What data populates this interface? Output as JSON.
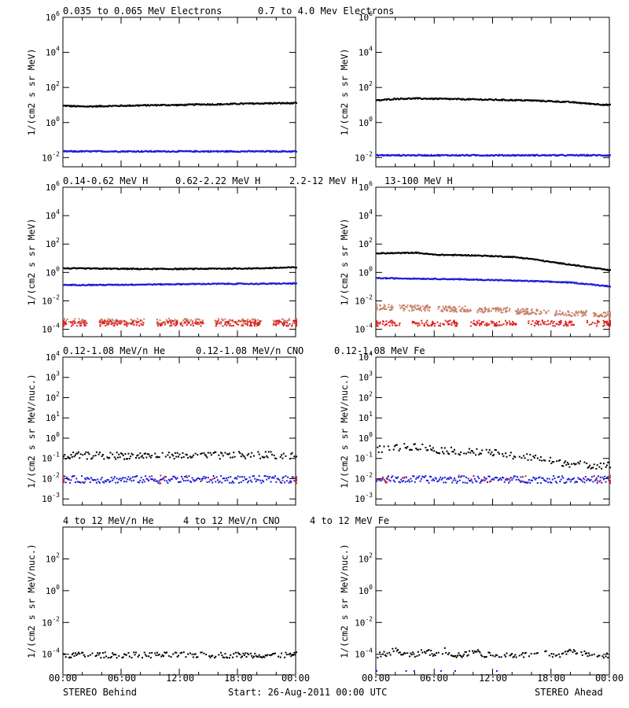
{
  "title_rows": [
    {
      "labels": [
        {
          "text": "0.035 to 0.065 MeV Electrons",
          "color": "#000000"
        },
        {
          "text": "0.7 to 4.0 Mev Electrons",
          "color": "#1a1ad6"
        }
      ]
    },
    {
      "labels": [
        {
          "text": "0.14-0.62 MeV H",
          "color": "#000000"
        },
        {
          "text": "0.62-2.22 MeV H",
          "color": "#1a1ad6"
        },
        {
          "text": "2.2-12 MeV H",
          "color": "#c8826a"
        },
        {
          "text": "13-100 MeV H",
          "color": "#e02020"
        }
      ]
    },
    {
      "labels": [
        {
          "text": "0.12-1.08 MeV/n He",
          "color": "#000000"
        },
        {
          "text": "0.12-1.08 MeV/n CNO",
          "color": "#1a1ad6"
        },
        {
          "text": "0.12-1.08 MeV Fe",
          "color": "#e02020"
        }
      ]
    },
    {
      "labels": [
        {
          "text": "4 to 12 MeV/n He",
          "color": "#000000"
        },
        {
          "text": "4 to 12 MeV/n CNO",
          "color": "#1a1ad6"
        },
        {
          "text": "4 to 12 MeV Fe",
          "color": "#e02020"
        }
      ]
    }
  ],
  "footer": {
    "left": "STEREO Behind",
    "center": "Start: 26-Aug-2011 00:00 UTC",
    "right": "STEREO Ahead"
  },
  "x_ticks": [
    "00:00",
    "06:00",
    "12:00",
    "18:00",
    "00:00"
  ],
  "chart_data": [
    {
      "id": "p1",
      "type": "scatter",
      "spacecraft": "STEREO Behind",
      "ylabel": "1/(cm2 s sr MeV)",
      "yscale": "log",
      "ylim": [
        0.003,
        1000000
      ],
      "x_hours": [
        0,
        24
      ],
      "y_ticks": [
        {
          "base": "10",
          "exp": "6",
          "v": 1000000
        },
        {
          "base": "10",
          "exp": "4",
          "v": 10000
        },
        {
          "base": "10",
          "exp": "2",
          "v": 100
        },
        {
          "base": "10",
          "exp": "0",
          "v": 1
        },
        {
          "base": "10",
          "exp": "-2",
          "v": 0.01
        }
      ],
      "series": [
        {
          "name": "0.035 to 0.065 MeV Electrons",
          "color": "#000000",
          "x": [
            0,
            2,
            4,
            6,
            8,
            10,
            12,
            14,
            16,
            18,
            20,
            22,
            24
          ],
          "y": [
            10,
            9,
            9.5,
            10,
            10.5,
            11,
            11,
            12,
            12,
            13,
            13.5,
            14,
            14
          ]
        },
        {
          "name": "0.7 to 4.0 Mev Electrons",
          "color": "#1a1ad6",
          "x": [
            0,
            4,
            8,
            12,
            16,
            20,
            24
          ],
          "y": [
            0.025,
            0.025,
            0.025,
            0.025,
            0.025,
            0.025,
            0.025
          ]
        }
      ]
    },
    {
      "id": "p2",
      "type": "scatter",
      "spacecraft": "STEREO Ahead",
      "ylabel": "1/(cm2 s sr MeV)",
      "yscale": "log",
      "ylim": [
        0.003,
        1000000
      ],
      "x_hours": [
        0,
        24
      ],
      "y_ticks": [
        {
          "base": "10",
          "exp": "6",
          "v": 1000000
        },
        {
          "base": "10",
          "exp": "4",
          "v": 10000
        },
        {
          "base": "10",
          "exp": "2",
          "v": 100
        },
        {
          "base": "10",
          "exp": "0",
          "v": 1
        },
        {
          "base": "10",
          "exp": "-2",
          "v": 0.01
        }
      ],
      "series": [
        {
          "name": "0.035 to 0.065 MeV Electrons",
          "color": "#000000",
          "x": [
            0,
            2,
            4,
            6,
            8,
            10,
            12,
            14,
            16,
            18,
            20,
            22,
            24
          ],
          "y": [
            20,
            25,
            26,
            25,
            24,
            23,
            22,
            21,
            20,
            18,
            16,
            13,
            11
          ]
        },
        {
          "name": "0.7 to 4.0 Mev Electrons",
          "color": "#1a1ad6",
          "x": [
            0,
            4,
            8,
            12,
            16,
            20,
            24
          ],
          "y": [
            0.015,
            0.015,
            0.015,
            0.015,
            0.015,
            0.015,
            0.015
          ]
        }
      ]
    },
    {
      "id": "p3",
      "type": "scatter",
      "spacecraft": "STEREO Behind",
      "ylabel": "1/(cm2 s sr MeV)",
      "yscale": "log",
      "ylim": [
        3e-05,
        1000000
      ],
      "x_hours": [
        0,
        24
      ],
      "y_ticks": [
        {
          "base": "10",
          "exp": "6",
          "v": 1000000
        },
        {
          "base": "10",
          "exp": "4",
          "v": 10000
        },
        {
          "base": "10",
          "exp": "2",
          "v": 100
        },
        {
          "base": "10",
          "exp": "0",
          "v": 1
        },
        {
          "base": "10",
          "exp": "-2",
          "v": 0.01
        },
        {
          "base": "10",
          "exp": "-4",
          "v": 0.0001
        }
      ],
      "series": [
        {
          "name": "0.14-0.62 MeV H",
          "color": "#000000",
          "x": [
            0,
            4,
            8,
            12,
            16,
            20,
            24
          ],
          "y": [
            2.2,
            2.1,
            2.0,
            2.0,
            2.1,
            2.2,
            2.6
          ]
        },
        {
          "name": "0.62-2.22 MeV H",
          "color": "#1a1ad6",
          "x": [
            0,
            4,
            8,
            12,
            16,
            20,
            24
          ],
          "y": [
            0.15,
            0.15,
            0.16,
            0.17,
            0.18,
            0.18,
            0.19
          ]
        },
        {
          "name": "2.2-12 MeV H",
          "color": "#c8826a",
          "x": [
            0,
            6,
            12,
            18,
            24
          ],
          "y": [
            0.0004,
            0.0004,
            0.0004,
            0.0004,
            0.0004
          ]
        },
        {
          "name": "13-100 MeV H",
          "color": "#e02020",
          "x": [
            0,
            6,
            12,
            18,
            24
          ],
          "y": [
            0.0003,
            0.0003,
            0.0003,
            0.0003,
            0.0003
          ]
        }
      ]
    },
    {
      "id": "p4",
      "type": "scatter",
      "spacecraft": "STEREO Ahead",
      "ylabel": "1/(cm2 s sr MeV)",
      "yscale": "log",
      "ylim": [
        3e-05,
        1000000
      ],
      "x_hours": [
        0,
        24
      ],
      "y_ticks": [
        {
          "base": "10",
          "exp": "6",
          "v": 1000000
        },
        {
          "base": "10",
          "exp": "4",
          "v": 10000
        },
        {
          "base": "10",
          "exp": "2",
          "v": 100
        },
        {
          "base": "10",
          "exp": "0",
          "v": 1
        },
        {
          "base": "10",
          "exp": "-2",
          "v": 0.01
        },
        {
          "base": "10",
          "exp": "-4",
          "v": 0.0001
        }
      ],
      "series": [
        {
          "name": "0.14-0.62 MeV H",
          "color": "#000000",
          "x": [
            0,
            2,
            4,
            6,
            8,
            10,
            12,
            14,
            16,
            18,
            20,
            22,
            24
          ],
          "y": [
            25,
            26,
            28,
            20,
            19,
            18,
            16,
            14,
            10,
            6,
            4,
            2.5,
            1.6
          ]
        },
        {
          "name": "0.62-2.22 MeV H",
          "color": "#1a1ad6",
          "x": [
            0,
            4,
            8,
            12,
            16,
            20,
            24
          ],
          "y": [
            0.45,
            0.42,
            0.38,
            0.33,
            0.28,
            0.22,
            0.12
          ]
        },
        {
          "name": "2.2-12 MeV H",
          "color": "#c8826a",
          "x": [
            0,
            4,
            8,
            12,
            16,
            20,
            24
          ],
          "y": [
            0.004,
            0.0035,
            0.003,
            0.0025,
            0.002,
            0.0015,
            0.0012
          ]
        },
        {
          "name": "13-100 MeV H",
          "color": "#e02020",
          "x": [
            0,
            6,
            12,
            18,
            24
          ],
          "y": [
            0.0003,
            0.0003,
            0.0003,
            0.0003,
            0.0003
          ]
        }
      ]
    },
    {
      "id": "p5",
      "type": "scatter",
      "spacecraft": "STEREO Behind",
      "ylabel": "1/(cm2 s sr MeV/nuc.)",
      "yscale": "log",
      "ylim": [
        0.0005,
        10000
      ],
      "x_hours": [
        0,
        24
      ],
      "y_ticks": [
        {
          "base": "10",
          "exp": "4",
          "v": 10000
        },
        {
          "base": "10",
          "exp": "3",
          "v": 1000
        },
        {
          "base": "10",
          "exp": "2",
          "v": 100
        },
        {
          "base": "10",
          "exp": "1",
          "v": 10
        },
        {
          "base": "10",
          "exp": "0",
          "v": 1
        },
        {
          "base": "10",
          "exp": "-1",
          "v": 0.1
        },
        {
          "base": "10",
          "exp": "-2",
          "v": 0.01
        },
        {
          "base": "10",
          "exp": "-3",
          "v": 0.001
        }
      ],
      "series": [
        {
          "name": "0.12-1.08 MeV/n He",
          "color": "#000000",
          "x": [
            0,
            4,
            8,
            12,
            16,
            20,
            24
          ],
          "y": [
            0.15,
            0.15,
            0.15,
            0.15,
            0.15,
            0.16,
            0.15
          ]
        },
        {
          "name": "0.12-1.08 MeV/n CNO",
          "color": "#1a1ad6",
          "x": [
            0,
            12,
            24
          ],
          "y": [
            0.01,
            0.01,
            0.01
          ]
        },
        {
          "name": "0.12-1.08 MeV Fe",
          "color": "#e02020",
          "x": [
            0,
            12,
            24
          ],
          "y": [
            0.01,
            0.01,
            0.01
          ]
        }
      ]
    },
    {
      "id": "p6",
      "type": "scatter",
      "spacecraft": "STEREO Ahead",
      "ylabel": "1/(cm2 s sr MeV/nuc.)",
      "yscale": "log",
      "ylim": [
        0.0005,
        10000
      ],
      "x_hours": [
        0,
        24
      ],
      "y_ticks": [
        {
          "base": "10",
          "exp": "4",
          "v": 10000
        },
        {
          "base": "10",
          "exp": "3",
          "v": 1000
        },
        {
          "base": "10",
          "exp": "2",
          "v": 100
        },
        {
          "base": "10",
          "exp": "1",
          "v": 10
        },
        {
          "base": "10",
          "exp": "0",
          "v": 1
        },
        {
          "base": "10",
          "exp": "-1",
          "v": 0.1
        },
        {
          "base": "10",
          "exp": "-2",
          "v": 0.01
        },
        {
          "base": "10",
          "exp": "-3",
          "v": 0.001
        }
      ],
      "series": [
        {
          "name": "0.12-1.08 MeV/n He",
          "color": "#000000",
          "x": [
            0,
            2,
            4,
            6,
            8,
            10,
            12,
            14,
            16,
            18,
            20,
            22,
            24
          ],
          "y": [
            0.3,
            0.35,
            0.45,
            0.3,
            0.25,
            0.22,
            0.2,
            0.15,
            0.12,
            0.08,
            0.06,
            0.05,
            0.05
          ]
        },
        {
          "name": "0.12-1.08 MeV/n CNO",
          "color": "#1a1ad6",
          "x": [
            0,
            12,
            24
          ],
          "y": [
            0.01,
            0.01,
            0.01
          ]
        },
        {
          "name": "0.12-1.08 MeV Fe",
          "color": "#e02020",
          "x": [
            0,
            12,
            24
          ],
          "y": [
            0.01,
            0.01,
            0.01
          ]
        }
      ]
    },
    {
      "id": "p7",
      "type": "scatter",
      "spacecraft": "STEREO Behind",
      "ylabel": "1/(cm2 s sr MeV/nuc.)",
      "yscale": "log",
      "ylim": [
        5e-06,
        10000
      ],
      "x_hours": [
        0,
        24
      ],
      "y_ticks": [
        {
          "base": "10",
          "exp": "2",
          "v": 100
        },
        {
          "base": "10",
          "exp": "0",
          "v": 1
        },
        {
          "base": "10",
          "exp": "-2",
          "v": 0.01
        },
        {
          "base": "10",
          "exp": "-4",
          "v": 0.0001
        }
      ],
      "series": [
        {
          "name": "4 to 12 MeV/n He",
          "color": "#000000",
          "x": [
            1,
            2,
            4,
            10,
            11,
            14,
            15,
            18,
            20,
            23
          ],
          "y": [
            0.0001,
            0.0001,
            0.0001,
            0.0001,
            0.0001,
            0.0001,
            0.0001,
            0.0001,
            0.0001,
            0.0001
          ]
        }
      ]
    },
    {
      "id": "p8",
      "type": "scatter",
      "spacecraft": "STEREO Ahead",
      "ylabel": "1/(cm2 s sr MeV/nuc.)",
      "yscale": "log",
      "ylim": [
        5e-06,
        10000
      ],
      "x_hours": [
        0,
        24
      ],
      "y_ticks": [
        {
          "base": "10",
          "exp": "2",
          "v": 100
        },
        {
          "base": "10",
          "exp": "0",
          "v": 1
        },
        {
          "base": "10",
          "exp": "-2",
          "v": 0.01
        },
        {
          "base": "10",
          "exp": "-4",
          "v": 0.0001
        }
      ],
      "series": [
        {
          "name": "4 to 12 MeV/n He",
          "color": "#000000",
          "x": [
            0.5,
            2,
            3,
            4,
            5,
            6,
            7,
            8,
            9,
            10,
            11,
            12,
            14,
            16,
            17,
            18,
            19,
            20,
            22,
            23,
            24
          ],
          "y": [
            0.0001,
            0.0002,
            0.0001,
            0.0001,
            0.0002,
            0.0001,
            0.0002,
            0.0001,
            0.0001,
            0.0002,
            0.0001,
            0.0001,
            0.0001,
            0.0001,
            0.0002,
            0.0001,
            0.0001,
            0.0002,
            0.0001,
            0.0001,
            0.0001
          ]
        },
        {
          "name": "4 to 12 MeV/n CNO",
          "color": "#1a1ad6",
          "x": [
            4.5
          ],
          "y": [
            1e-05
          ]
        }
      ]
    }
  ]
}
